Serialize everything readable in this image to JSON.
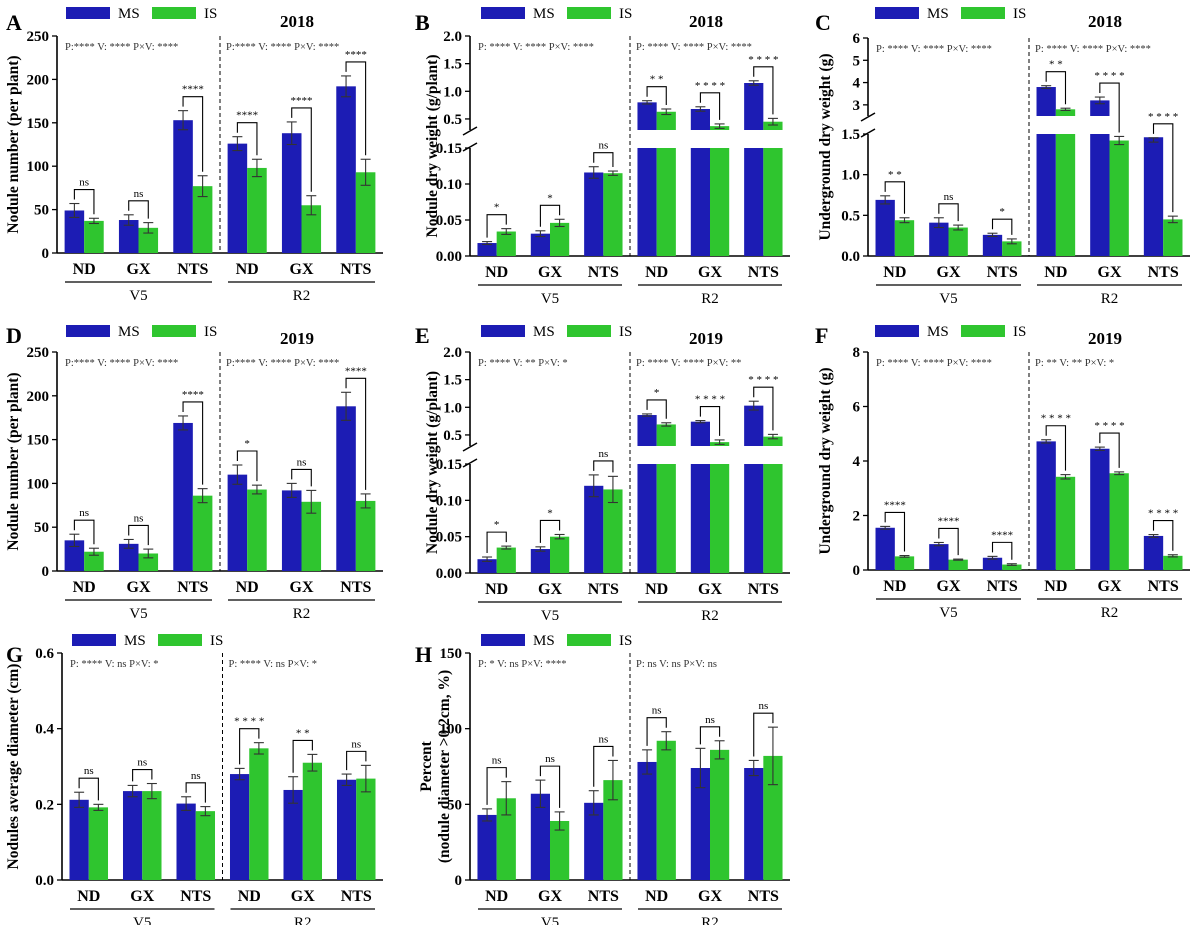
{
  "legend": {
    "ms_label": "MS",
    "is_label": "IS"
  },
  "colors": {
    "ms": "#1c1cb4",
    "is": "#2fc52f"
  },
  "categories": [
    "ND",
    "GX",
    "NTS"
  ],
  "groups": [
    "V5",
    "R2"
  ],
  "chart_data": [
    {
      "id": "A",
      "type": "bar",
      "letter": "A",
      "year": "2018",
      "ylabel": "Nodule number (per  plant)",
      "ylim": [
        0,
        250
      ],
      "yticks": [
        0,
        50,
        100,
        150,
        200,
        250
      ],
      "stats": [
        "P:**** V: **** P×V: ****",
        "P:**** V: **** P×V: ****"
      ],
      "series": [
        {
          "name": "MS",
          "values": [
            49,
            38,
            153,
            126,
            138,
            192
          ],
          "errors": [
            8,
            6,
            11,
            8,
            13,
            12
          ]
        },
        {
          "name": "IS",
          "values": [
            37,
            29,
            77,
            98,
            55,
            93
          ],
          "errors": [
            3,
            6,
            12,
            10,
            11,
            15
          ]
        }
      ],
      "significance": [
        "ns",
        "ns",
        "****",
        "****",
        "****",
        "****"
      ]
    },
    {
      "id": "B",
      "type": "bar",
      "letter": "B",
      "year": "2018",
      "ylabel": "Nodule dry weight (g/plant)",
      "broken": true,
      "lower": {
        "ylim": [
          0,
          0.15
        ],
        "yticks": [
          "0.00",
          "0.05",
          "0.10",
          "0.15"
        ]
      },
      "upper": {
        "ylim": [
          0.3,
          2.0
        ],
        "yticks": [
          "0.5",
          "1.0",
          "1.5",
          "2.0"
        ]
      },
      "stats": [
        "P: **** V: **** P×V: ****",
        "P: **** V: **** P×V: ****"
      ],
      "series": [
        {
          "name": "MS",
          "values": [
            0.018,
            0.031,
            0.116,
            0.8,
            0.68,
            1.15
          ],
          "errors": [
            0.002,
            0.004,
            0.008,
            0.03,
            0.04,
            0.04
          ]
        },
        {
          "name": "IS",
          "values": [
            0.034,
            0.046,
            0.115,
            0.63,
            0.37,
            0.45
          ],
          "errors": [
            0.004,
            0.005,
            0.003,
            0.05,
            0.04,
            0.06
          ]
        }
      ],
      "significance": [
        "*",
        "*",
        "ns",
        "* *",
        "* * * *",
        "* * * *"
      ]
    },
    {
      "id": "C",
      "type": "bar",
      "letter": "C",
      "year": "2018",
      "ylabel": "Underground dry weight (g)",
      "broken": true,
      "lower": {
        "ylim": [
          0,
          1.5
        ],
        "yticks": [
          "0.0",
          "0.5",
          "1.0",
          "1.5"
        ]
      },
      "upper": {
        "ylim": [
          2.5,
          6
        ],
        "yticks": [
          "3",
          "4",
          "5",
          "6"
        ]
      },
      "stats": [
        "P: **** V: **** P×V: ****",
        "P: **** V: **** P×V: ****"
      ],
      "series": [
        {
          "name": "MS",
          "values": [
            0.69,
            0.41,
            0.26,
            3.8,
            3.2,
            1.46
          ],
          "errors": [
            0.05,
            0.06,
            0.02,
            0.06,
            0.15,
            0.06
          ]
        },
        {
          "name": "IS",
          "values": [
            0.44,
            0.35,
            0.18,
            2.8,
            1.42,
            0.45
          ],
          "errors": [
            0.03,
            0.03,
            0.03,
            0.05,
            0.05,
            0.04
          ]
        }
      ],
      "significance": [
        "* *",
        "ns",
        "*",
        "* *",
        "* * * *",
        "* * * *"
      ]
    },
    {
      "id": "D",
      "type": "bar",
      "letter": "D",
      "year": "2019",
      "ylabel": "Nodule number (per  plant)",
      "ylim": [
        0,
        250
      ],
      "yticks": [
        0,
        50,
        100,
        150,
        200,
        250
      ],
      "stats": [
        "P:**** V: **** P×V: ****",
        "P:**** V: **** P×V: ****"
      ],
      "series": [
        {
          "name": "MS",
          "values": [
            35,
            31,
            169,
            110,
            92,
            188
          ],
          "errors": [
            7,
            5,
            8,
            11,
            8,
            16
          ]
        },
        {
          "name": "IS",
          "values": [
            22,
            20,
            86,
            93,
            79,
            80
          ],
          "errors": [
            4,
            5,
            8,
            5,
            13,
            8
          ]
        }
      ],
      "significance": [
        "ns",
        "ns",
        "****",
        "*",
        "ns",
        "****"
      ]
    },
    {
      "id": "E",
      "type": "bar",
      "letter": "E",
      "year": "2019",
      "ylabel": "Nodule dry weight (g/plant)",
      "broken": true,
      "lower": {
        "ylim": [
          0,
          0.15
        ],
        "yticks": [
          "0.00",
          "0.05",
          "0.10",
          "0.15"
        ]
      },
      "upper": {
        "ylim": [
          0.3,
          2.0
        ],
        "yticks": [
          "0.5",
          "1.0",
          "1.5",
          "2.0"
        ]
      },
      "stats": [
        "P: **** V: ** P×V: *",
        "P: **** V: **** P×V: **"
      ],
      "series": [
        {
          "name": "MS",
          "values": [
            0.019,
            0.033,
            0.12,
            0.86,
            0.74,
            1.03
          ],
          "errors": [
            0.003,
            0.003,
            0.015,
            0.02,
            0.02,
            0.08
          ]
        },
        {
          "name": "IS",
          "values": [
            0.035,
            0.05,
            0.115,
            0.69,
            0.37,
            0.47
          ],
          "errors": [
            0.002,
            0.003,
            0.018,
            0.03,
            0.04,
            0.04
          ]
        }
      ],
      "significance": [
        "*",
        "*",
        "ns",
        "*",
        "* * * *",
        "* * * *"
      ]
    },
    {
      "id": "F",
      "type": "bar",
      "letter": "F",
      "year": "2019",
      "ylabel": "Underground dry weight (g)",
      "ylim": [
        0,
        8
      ],
      "yticks": [
        0,
        2,
        4,
        6,
        8
      ],
      "stats": [
        "P: **** V: **** P×V: ****",
        "P: ** V: ** P×V: *"
      ],
      "series": [
        {
          "name": "MS",
          "values": [
            1.55,
            0.95,
            0.45,
            4.72,
            4.45,
            1.25
          ],
          "errors": [
            0.05,
            0.06,
            0.05,
            0.06,
            0.06,
            0.05
          ]
        },
        {
          "name": "IS",
          "values": [
            0.5,
            0.38,
            0.2,
            3.42,
            3.55,
            0.52
          ],
          "errors": [
            0.03,
            0.02,
            0.03,
            0.08,
            0.05,
            0.04
          ]
        }
      ],
      "significance": [
        "****",
        "****",
        "****",
        "* * * *",
        "* * * *",
        "* * * *"
      ]
    },
    {
      "id": "G",
      "type": "bar",
      "letter": "G",
      "year": "",
      "ylabel": "Nodules average diameter  (cm)",
      "ylim": [
        0,
        0.6
      ],
      "yticks": [
        "0.0",
        "0.2",
        "0.4",
        "0.6"
      ],
      "stats": [
        "P: **** V: ns P×V: *",
        "P: **** V: ns P×V: *"
      ],
      "series": [
        {
          "name": "MS",
          "values": [
            0.212,
            0.235,
            0.202,
            0.28,
            0.238,
            0.265
          ],
          "errors": [
            0.02,
            0.015,
            0.018,
            0.015,
            0.035,
            0.015
          ]
        },
        {
          "name": "IS",
          "values": [
            0.192,
            0.235,
            0.182,
            0.348,
            0.31,
            0.268
          ],
          "errors": [
            0.008,
            0.02,
            0.012,
            0.015,
            0.022,
            0.035
          ]
        }
      ],
      "significance": [
        "ns",
        "ns",
        "ns",
        "* * * *",
        "* *",
        "ns"
      ]
    },
    {
      "id": "H",
      "type": "bar",
      "letter": "H",
      "year": "",
      "ylabel": "Percent",
      "ylabel2": "(nodule diameter >0.2cm, %)",
      "ylim": [
        0,
        150
      ],
      "yticks": [
        0,
        50,
        100,
        150
      ],
      "stats": [
        "P: * V: ns P×V: ****",
        "P: ns V: ns P×V: ns"
      ],
      "series": [
        {
          "name": "MS",
          "values": [
            43,
            57,
            51,
            78,
            74,
            74
          ],
          "errors": [
            4,
            9,
            8,
            8,
            13,
            5
          ]
        },
        {
          "name": "IS",
          "values": [
            54,
            39,
            66,
            92,
            86,
            82
          ],
          "errors": [
            11,
            6,
            13,
            6,
            6,
            19
          ]
        }
      ],
      "significance": [
        "ns",
        "ns",
        "ns",
        "ns",
        "ns",
        "ns"
      ]
    }
  ]
}
